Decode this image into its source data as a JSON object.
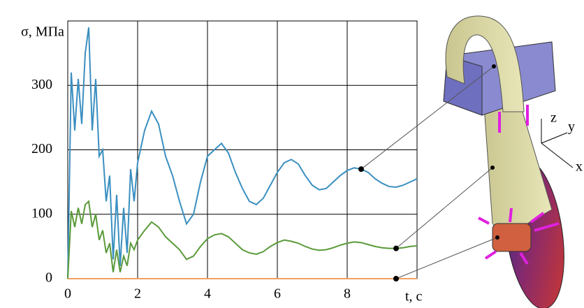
{
  "chart_data": {
    "type": "line",
    "y_label": "σ, МПа",
    "x_label": "t, с",
    "x": [
      0,
      0.1,
      0.2,
      0.3,
      0.4,
      0.5,
      0.6,
      0.7,
      0.8,
      0.9,
      1.0,
      1.1,
      1.2,
      1.3,
      1.4,
      1.5,
      1.6,
      1.7,
      1.8,
      1.9,
      2.0,
      2.2,
      2.4,
      2.6,
      2.8,
      3.0,
      3.2,
      3.4,
      3.6,
      3.8,
      4.0,
      4.2,
      4.4,
      4.6,
      4.8,
      5.0,
      5.2,
      5.4,
      5.6,
      5.8,
      6.0,
      6.2,
      6.4,
      6.6,
      6.8,
      7.0,
      7.2,
      7.4,
      7.6,
      7.8,
      8.0,
      8.2,
      8.4,
      8.6,
      8.8,
      9.0,
      9.2,
      9.4,
      9.6,
      9.8,
      10
    ],
    "series": [
      {
        "color": "#3a8fc0",
        "values": [
          0,
          320,
          230,
          310,
          240,
          350,
          390,
          230,
          310,
          190,
          200,
          120,
          160,
          30,
          130,
          20,
          110,
          40,
          170,
          120,
          180,
          230,
          260,
          240,
          190,
          160,
          120,
          85,
          100,
          150,
          190,
          200,
          210,
          195,
          165,
          140,
          120,
          115,
          125,
          145,
          165,
          180,
          185,
          178,
          160,
          145,
          138,
          140,
          150,
          160,
          168,
          172,
          170,
          165,
          155,
          148,
          143,
          142,
          145,
          150,
          155
        ]
      },
      {
        "color": "#5a9a3a",
        "values": [
          0,
          105,
          80,
          110,
          85,
          115,
          120,
          80,
          100,
          60,
          75,
          40,
          55,
          10,
          45,
          10,
          35,
          20,
          55,
          45,
          60,
          75,
          88,
          80,
          65,
          55,
          45,
          30,
          35,
          50,
          62,
          68,
          70,
          65,
          55,
          45,
          40,
          38,
          42,
          50,
          56,
          60,
          58,
          55,
          50,
          46,
          44,
          45,
          48,
          52,
          55,
          57,
          56,
          53,
          50,
          48,
          47,
          47,
          48,
          50,
          51
        ]
      },
      {
        "color": "#f0a060",
        "values": [
          0,
          0,
          0,
          0,
          0,
          0,
          0,
          0,
          0,
          0,
          0,
          0,
          0,
          0,
          0,
          0,
          0,
          0,
          0,
          0,
          0,
          0,
          0,
          0,
          0,
          0,
          0,
          0,
          0,
          0,
          0,
          0,
          0,
          0,
          0,
          0,
          0,
          0,
          0,
          0,
          0,
          0,
          0,
          0,
          0,
          0,
          0,
          0,
          0,
          0,
          0,
          0,
          0,
          0,
          0,
          0,
          0,
          0,
          0,
          0,
          0
        ]
      }
    ],
    "xlim": [
      0,
      10
    ],
    "ylim": [
      0,
      400
    ],
    "xticks": [
      0,
      2,
      4,
      6,
      8
    ],
    "yticks": [
      0,
      100,
      200,
      300
    ],
    "grid": true,
    "triad_labels": [
      "z",
      "y",
      "x"
    ]
  }
}
